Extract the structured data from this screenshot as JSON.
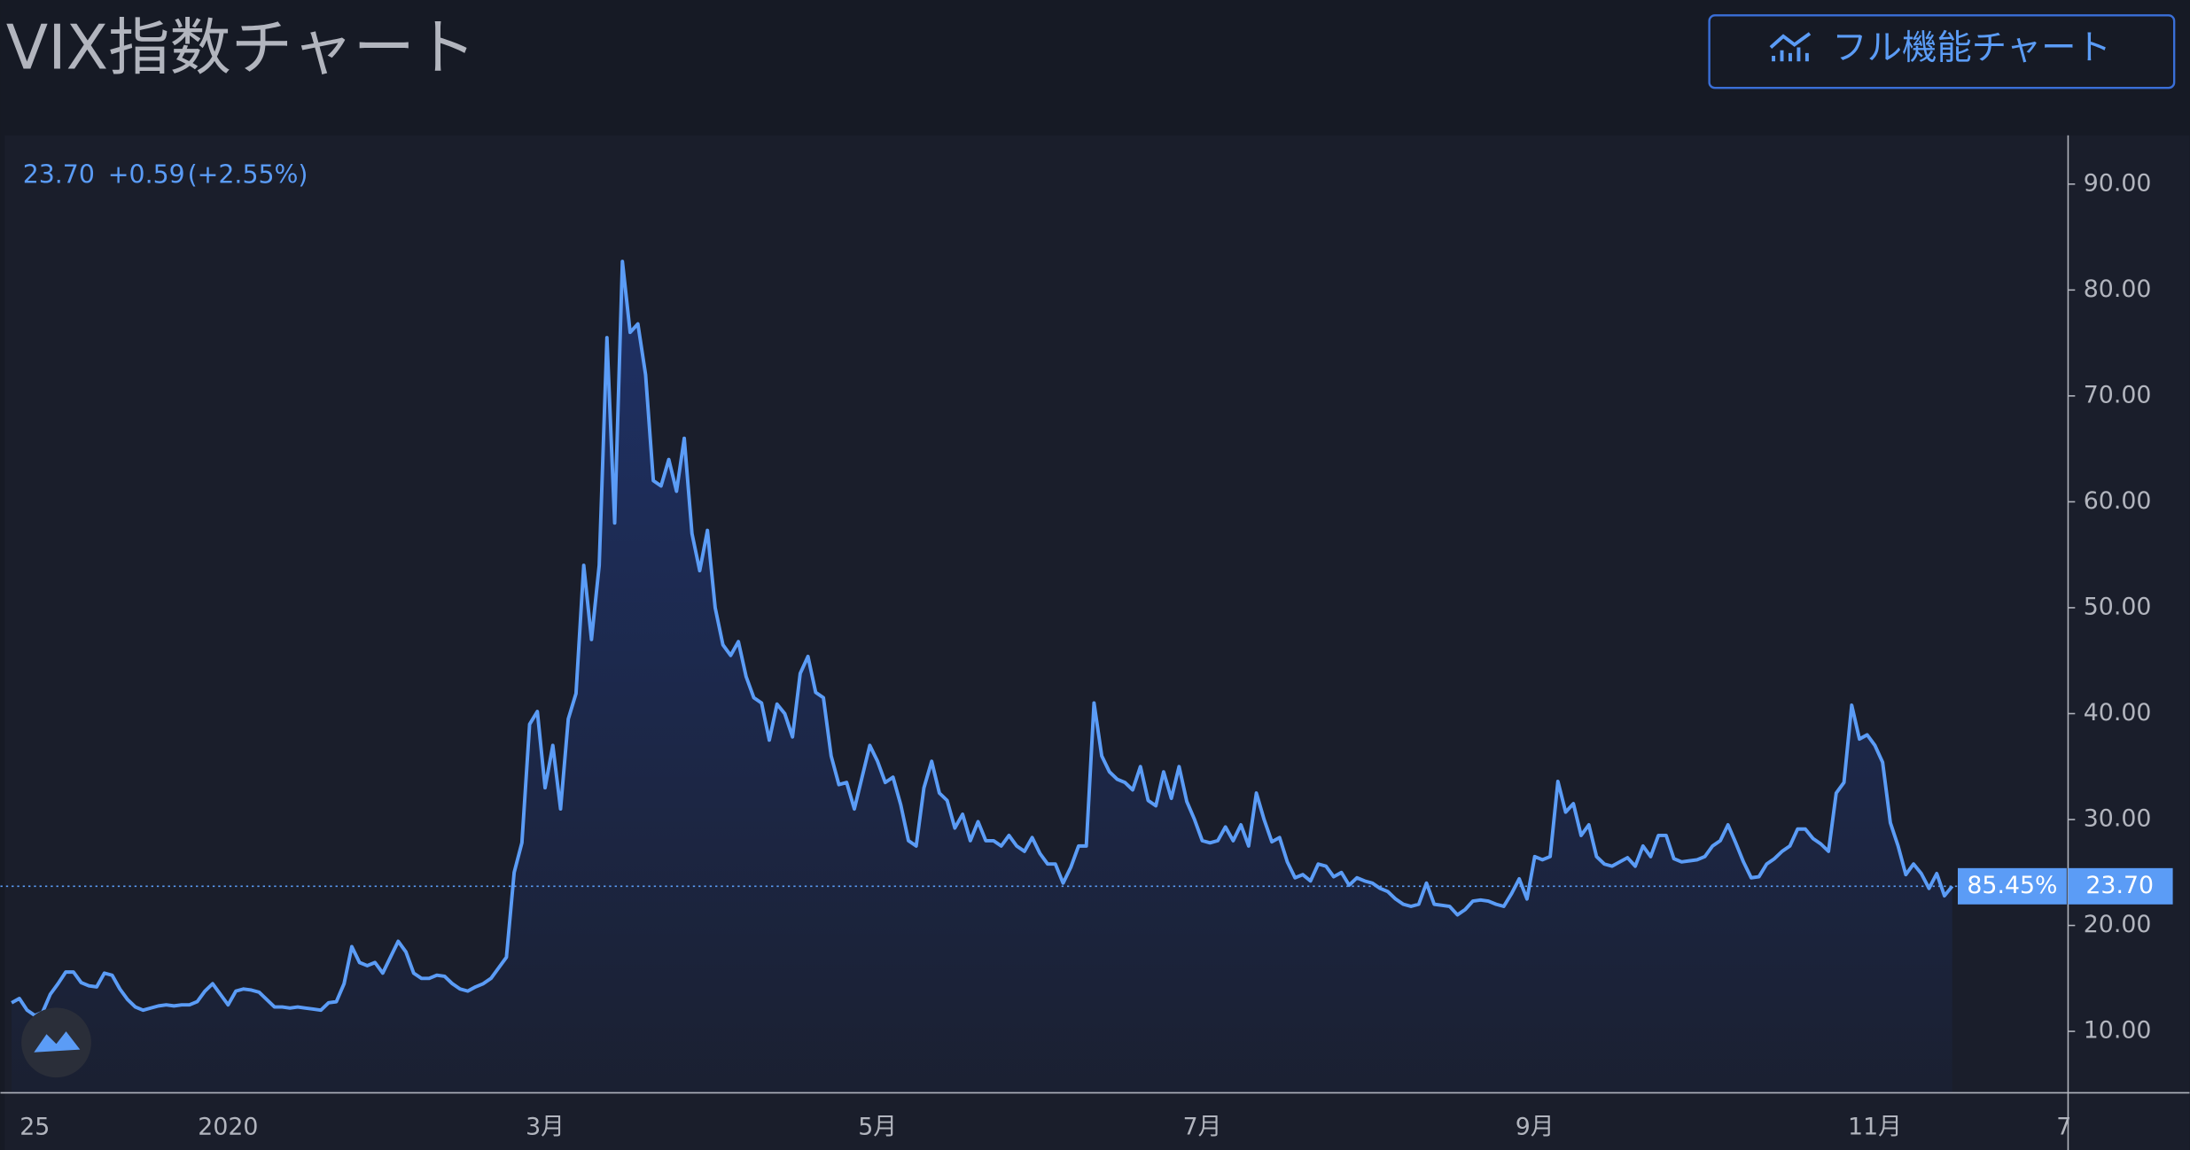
{
  "title": "VIX指数チャート",
  "button": "フル機能チャート",
  "header": {
    "last": "23.70",
    "change": "+0.59",
    "change_pct": "(+2.55%)"
  },
  "price_badge": {
    "percent": "85.45%",
    "value": "23.70"
  },
  "chart_data": {
    "type": "line",
    "color": "#5b9cf6",
    "ylim": [
      4.2,
      94.6
    ],
    "yticks": [
      {
        "value": 10,
        "label": "10.00"
      },
      {
        "value": 20,
        "label": "20.00"
      },
      {
        "value": 30,
        "label": "30.00"
      },
      {
        "value": 40,
        "label": "40.00"
      },
      {
        "value": 50,
        "label": "50.00"
      },
      {
        "value": 60,
        "label": "60.00"
      },
      {
        "value": 70,
        "label": "70.00"
      },
      {
        "value": 80,
        "label": "80.00"
      },
      {
        "value": 90,
        "label": "90.00"
      }
    ],
    "x_edge_label": "7",
    "categories": [
      null,
      null,
      null,
      "25",
      null,
      null,
      null,
      null,
      null,
      null,
      null,
      null,
      null,
      null,
      null,
      null,
      null,
      null,
      null,
      null,
      null,
      null,
      null,
      null,
      null,
      null,
      null,
      null,
      "2020",
      null,
      null,
      null,
      null,
      null,
      null,
      null,
      null,
      null,
      null,
      null,
      null,
      null,
      null,
      null,
      null,
      null,
      null,
      null,
      null,
      null,
      null,
      null,
      null,
      null,
      null,
      null,
      null,
      null,
      null,
      null,
      null,
      null,
      null,
      null,
      null,
      null,
      null,
      null,
      null,
      "3月",
      null,
      null,
      null,
      null,
      null,
      null,
      null,
      null,
      null,
      null,
      null,
      null,
      null,
      null,
      null,
      null,
      null,
      null,
      null,
      null,
      null,
      null,
      null,
      null,
      null,
      null,
      null,
      null,
      null,
      null,
      null,
      null,
      null,
      null,
      null,
      null,
      null,
      null,
      null,
      null,
      null,
      null,
      "5月",
      null,
      null,
      null,
      null,
      null,
      null,
      null,
      null,
      null,
      null,
      null,
      null,
      null,
      null,
      null,
      null,
      null,
      null,
      null,
      null,
      null,
      null,
      null,
      null,
      null,
      null,
      null,
      null,
      null,
      null,
      null,
      null,
      null,
      null,
      null,
      null,
      null,
      null,
      null,
      null,
      null,
      "7月",
      null,
      null,
      null,
      null,
      null,
      null,
      null,
      null,
      null,
      null,
      null,
      null,
      null,
      null,
      null,
      null,
      null,
      null,
      null,
      null,
      null,
      null,
      null,
      null,
      null,
      null,
      null,
      null,
      null,
      null,
      null,
      null,
      null,
      null,
      null,
      null,
      null,
      null,
      null,
      null,
      null,
      null,
      "9月",
      null,
      null,
      null,
      null,
      null,
      null,
      null,
      null,
      null,
      null,
      null,
      null,
      null,
      null,
      null,
      null,
      null,
      null,
      null,
      null,
      null,
      null,
      null,
      null,
      null,
      null,
      null,
      null,
      null,
      null,
      null,
      null,
      null,
      null,
      null,
      null,
      null,
      null,
      null,
      null,
      null,
      null,
      null,
      "11月",
      null,
      null,
      null,
      null,
      null,
      null,
      null,
      null,
      null,
      null
    ],
    "values": [
      12.7,
      13.1,
      12,
      11.5,
      11.8,
      13.5,
      14.5,
      15.6,
      15.6,
      14.6,
      14.3,
      14.2,
      15.5,
      15.3,
      14,
      13,
      12.3,
      12,
      12.2,
      12.4,
      12.5,
      12.4,
      12.5,
      12.5,
      12.8,
      13.8,
      14.5,
      13.5,
      12.5,
      13.8,
      14,
      13.9,
      13.7,
      13,
      12.3,
      12.3,
      12.2,
      12.3,
      12.2,
      12.1,
      12,
      12.7,
      12.8,
      14.5,
      18,
      16.5,
      16.2,
      16.5,
      15.5,
      17,
      18.5,
      17.5,
      15.5,
      15,
      15,
      15.3,
      15.2,
      14.5,
      14,
      13.8,
      14.2,
      14.5,
      15,
      16,
      17,
      25,
      27.8,
      39,
      40.2,
      33,
      37,
      31,
      39.5,
      41.9,
      54,
      47,
      54,
      75.5,
      58,
      82.7,
      76,
      76.8,
      72,
      62,
      61.5,
      64,
      61,
      66,
      57,
      53.5,
      57.3,
      50,
      46.5,
      45.5,
      46.8,
      43.5,
      41.5,
      41,
      37.5,
      40.9,
      40,
      37.8,
      43.8,
      45.4,
      42,
      41.5,
      36,
      33.3,
      33.5,
      31,
      34,
      37,
      35.5,
      33.5,
      34,
      31.4,
      28,
      27.5,
      33,
      35.5,
      32.5,
      31.8,
      29.2,
      30.5,
      28,
      29.8,
      28,
      28,
      27.5,
      28.5,
      27.5,
      27,
      28.3,
      26.8,
      25.8,
      25.8,
      24,
      25.5,
      27.5,
      27.5,
      41,
      36,
      34.5,
      33.8,
      33.5,
      32.8,
      35,
      31.8,
      31.3,
      34.5,
      32,
      35,
      31.7,
      30,
      28,
      27.8,
      28,
      29.3,
      28,
      29.5,
      27.5,
      32.5,
      30,
      27.9,
      28.3,
      26,
      24.5,
      24.8,
      24.2,
      25.8,
      25.6,
      24.6,
      25,
      23.8,
      24.5,
      24.2,
      24,
      23.5,
      23.2,
      22.5,
      22,
      21.8,
      22,
      24,
      22,
      21.9,
      21.8,
      21,
      21.5,
      22.3,
      22.4,
      22.3,
      22,
      21.8,
      23,
      24.4,
      22.5,
      26.5,
      26.2,
      26.5,
      33.6,
      30.7,
      31.5,
      28.5,
      29.5,
      26.5,
      25.8,
      25.6,
      26,
      26.4,
      25.6,
      27.5,
      26.5,
      28.5,
      28.5,
      26.3,
      26,
      26.1,
      26.2,
      26.5,
      27.5,
      28,
      29.5,
      27.8,
      26,
      24.5,
      24.6,
      25.8,
      26.3,
      27,
      27.5,
      29.1,
      29.1,
      28.2,
      27.7,
      27,
      32.5,
      33.5,
      40.8,
      37.6,
      38,
      37,
      35.4,
      29.7,
      27.5,
      24.8,
      25.8,
      24.9,
      23.5,
      24.9,
      22.8,
      23.7
    ]
  }
}
